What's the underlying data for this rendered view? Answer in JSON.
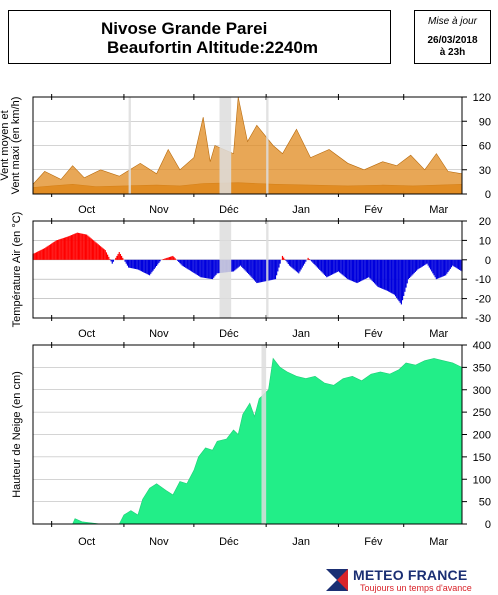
{
  "header": {
    "station": "Nivose Grande Parei",
    "location": "Beaufortin Altitude:2240m",
    "update_label": "Mise à jour",
    "update_date": "26/03/2018",
    "update_time": "à 23h"
  },
  "brand": {
    "name": "METEO FRANCE",
    "tagline": "Toujours un temps d'avance"
  },
  "colors": {
    "wind": "#e08a1e",
    "temp_pos": "#ff0000",
    "temp_neg": "#0000dd",
    "snow": "#22ee88",
    "gap": "#dddddd"
  },
  "months": [
    "Oct",
    "Nov",
    "Déc",
    "Jan",
    "Fév",
    "Mar"
  ],
  "chart_data": [
    {
      "type": "area",
      "id": "wind",
      "ylabel": "Vent moyen et Vent maxi (en km/h)",
      "ylim": [
        0,
        120
      ],
      "yticks": [
        0,
        30,
        60,
        90,
        120
      ],
      "xlabel": "",
      "x_start": "2017-09-23",
      "x_end": "2018-03-26",
      "gaps": [
        [
          "2017-11-03",
          "2017-11-04"
        ],
        [
          "2017-12-12",
          "2017-12-17"
        ],
        [
          "2018-01-01",
          "2018-01-02"
        ]
      ],
      "series": [
        {
          "name": "Vent moyen",
          "points": [
            [
              "2017-09-23",
              8
            ],
            [
              "2017-10-01",
              10
            ],
            [
              "2017-10-10",
              12
            ],
            [
              "2017-10-20",
              9
            ],
            [
              "2017-11-01",
              10
            ],
            [
              "2017-11-15",
              11
            ],
            [
              "2017-11-25",
              10
            ],
            [
              "2017-12-05",
              13
            ],
            [
              "2017-12-20",
              14
            ],
            [
              "2018-01-05",
              12
            ],
            [
              "2018-01-20",
              11
            ],
            [
              "2018-02-05",
              10
            ],
            [
              "2018-02-20",
              11
            ],
            [
              "2018-03-05",
              10
            ],
            [
              "2018-03-26",
              12
            ]
          ]
        },
        {
          "name": "Vent maxi",
          "points": [
            [
              "2017-09-23",
              12
            ],
            [
              "2017-09-28",
              28
            ],
            [
              "2017-10-05",
              18
            ],
            [
              "2017-10-10",
              35
            ],
            [
              "2017-10-15",
              20
            ],
            [
              "2017-10-22",
              30
            ],
            [
              "2017-10-30",
              22
            ],
            [
              "2017-11-08",
              38
            ],
            [
              "2017-11-15",
              25
            ],
            [
              "2017-11-20",
              55
            ],
            [
              "2017-11-25",
              30
            ],
            [
              "2017-12-01",
              45
            ],
            [
              "2017-12-05",
              95
            ],
            [
              "2017-12-08",
              40
            ],
            [
              "2017-12-10",
              60
            ],
            [
              "2017-12-18",
              50
            ],
            [
              "2017-12-20",
              120
            ],
            [
              "2017-12-24",
              65
            ],
            [
              "2017-12-28",
              85
            ],
            [
              "2018-01-04",
              60
            ],
            [
              "2018-01-08",
              50
            ],
            [
              "2018-01-14",
              80
            ],
            [
              "2018-01-20",
              45
            ],
            [
              "2018-01-28",
              55
            ],
            [
              "2018-02-05",
              38
            ],
            [
              "2018-02-12",
              30
            ],
            [
              "2018-02-20",
              40
            ],
            [
              "2018-02-26",
              35
            ],
            [
              "2018-03-04",
              48
            ],
            [
              "2018-03-10",
              30
            ],
            [
              "2018-03-15",
              50
            ],
            [
              "2018-03-20",
              28
            ],
            [
              "2018-03-26",
              25
            ]
          ]
        }
      ]
    },
    {
      "type": "bar",
      "id": "temperature",
      "ylabel": "Température Air (en °C)",
      "ylim": [
        -30,
        20
      ],
      "yticks": [
        -30,
        -20,
        -10,
        0,
        10,
        20
      ],
      "xlabel": "",
      "x_start": "2017-09-23",
      "x_end": "2018-03-26",
      "gaps": [
        [
          "2017-12-12",
          "2017-12-17"
        ],
        [
          "2018-01-01",
          "2018-01-02"
        ]
      ],
      "series": [
        {
          "name": "Température",
          "points": [
            [
              "2017-09-23",
              3
            ],
            [
              "2017-09-28",
              6
            ],
            [
              "2017-10-03",
              10
            ],
            [
              "2017-10-08",
              12
            ],
            [
              "2017-10-12",
              14
            ],
            [
              "2017-10-16",
              13
            ],
            [
              "2017-10-20",
              9
            ],
            [
              "2017-10-24",
              5
            ],
            [
              "2017-10-27",
              -2
            ],
            [
              "2017-10-30",
              4
            ],
            [
              "2017-11-03",
              -4
            ],
            [
              "2017-11-07",
              -5
            ],
            [
              "2017-11-12",
              -8
            ],
            [
              "2017-11-17",
              0
            ],
            [
              "2017-11-22",
              2
            ],
            [
              "2017-11-26",
              -3
            ],
            [
              "2017-11-30",
              -6
            ],
            [
              "2017-12-04",
              -9
            ],
            [
              "2017-12-09",
              -10
            ],
            [
              "2017-12-11",
              -7
            ],
            [
              "2017-12-18",
              -6
            ],
            [
              "2017-12-21",
              -3
            ],
            [
              "2017-12-25",
              -8
            ],
            [
              "2017-12-28",
              -12
            ],
            [
              "2018-01-05",
              -10
            ],
            [
              "2018-01-08",
              2
            ],
            [
              "2018-01-11",
              -3
            ],
            [
              "2018-01-15",
              -7
            ],
            [
              "2018-01-19",
              1
            ],
            [
              "2018-01-23",
              -4
            ],
            [
              "2018-01-27",
              -9
            ],
            [
              "2018-02-01",
              -6
            ],
            [
              "2018-02-05",
              -10
            ],
            [
              "2018-02-09",
              -12
            ],
            [
              "2018-02-14",
              -9
            ],
            [
              "2018-02-18",
              -14
            ],
            [
              "2018-02-22",
              -16
            ],
            [
              "2018-02-25",
              -18
            ],
            [
              "2018-02-28",
              -23
            ],
            [
              "2018-03-03",
              -10
            ],
            [
              "2018-03-07",
              -5
            ],
            [
              "2018-03-11",
              -2
            ],
            [
              "2018-03-15",
              -10
            ],
            [
              "2018-03-19",
              -8
            ],
            [
              "2018-03-22",
              -3
            ],
            [
              "2018-03-26",
              -6
            ]
          ]
        }
      ]
    },
    {
      "type": "area",
      "id": "snow",
      "ylabel": "Hauteur de Neige (en cm)",
      "ylim": [
        0,
        400
      ],
      "yticks": [
        0,
        50,
        100,
        150,
        200,
        250,
        300,
        350,
        400
      ],
      "xlabel": "",
      "x_start": "2017-09-23",
      "x_end": "2018-03-26",
      "gaps": [
        [
          "2017-12-30",
          "2018-01-01"
        ]
      ],
      "series": [
        {
          "name": "Hauteur de Neige",
          "points": [
            [
              "2017-09-23",
              0
            ],
            [
              "2017-10-10",
              0
            ],
            [
              "2017-10-11",
              12
            ],
            [
              "2017-10-14",
              5
            ],
            [
              "2017-10-22",
              0
            ],
            [
              "2017-10-30",
              0
            ],
            [
              "2017-11-01",
              20
            ],
            [
              "2017-11-04",
              30
            ],
            [
              "2017-11-07",
              20
            ],
            [
              "2017-11-09",
              55
            ],
            [
              "2017-11-12",
              80
            ],
            [
              "2017-11-15",
              90
            ],
            [
              "2017-11-19",
              75
            ],
            [
              "2017-11-22",
              65
            ],
            [
              "2017-11-25",
              95
            ],
            [
              "2017-11-28",
              90
            ],
            [
              "2017-12-01",
              120
            ],
            [
              "2017-12-03",
              150
            ],
            [
              "2017-12-06",
              170
            ],
            [
              "2017-12-09",
              165
            ],
            [
              "2017-12-11",
              185
            ],
            [
              "2017-12-15",
              190
            ],
            [
              "2017-12-18",
              210
            ],
            [
              "2017-12-20",
              200
            ],
            [
              "2017-12-22",
              245
            ],
            [
              "2017-12-25",
              270
            ],
            [
              "2017-12-27",
              240
            ],
            [
              "2017-12-29",
              280
            ],
            [
              "2018-01-02",
              300
            ],
            [
              "2018-01-04",
              370
            ],
            [
              "2018-01-07",
              350
            ],
            [
              "2018-01-10",
              340
            ],
            [
              "2018-01-14",
              330
            ],
            [
              "2018-01-18",
              325
            ],
            [
              "2018-01-22",
              330
            ],
            [
              "2018-01-26",
              315
            ],
            [
              "2018-01-30",
              310
            ],
            [
              "2018-02-03",
              325
            ],
            [
              "2018-02-07",
              330
            ],
            [
              "2018-02-11",
              320
            ],
            [
              "2018-02-15",
              335
            ],
            [
              "2018-02-19",
              340
            ],
            [
              "2018-02-23",
              335
            ],
            [
              "2018-02-27",
              345
            ],
            [
              "2018-03-02",
              360
            ],
            [
              "2018-03-06",
              355
            ],
            [
              "2018-03-10",
              365
            ],
            [
              "2018-03-14",
              370
            ],
            [
              "2018-03-18",
              365
            ],
            [
              "2018-03-22",
              360
            ],
            [
              "2018-03-26",
              350
            ]
          ]
        }
      ]
    }
  ]
}
